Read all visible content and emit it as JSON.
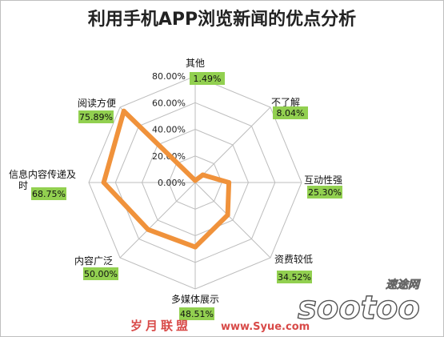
{
  "chart_data": {
    "type": "radar",
    "title": "利用手机APP浏览新闻的优点分析",
    "categories": [
      "其他",
      "不了解",
      "互动性强",
      "资费较低",
      "多媒体展示",
      "内容广泛",
      "信息内容传递及时",
      "阅读方便"
    ],
    "values": [
      1.49,
      8.04,
      25.3,
      34.52,
      48.51,
      50.0,
      68.75,
      75.89
    ],
    "value_labels": [
      "1.49%",
      "8.04%",
      "25.30%",
      "34.52%",
      "48.51%",
      "50.00%",
      "68.75%",
      "75.89%"
    ],
    "rlim": [
      0,
      80
    ],
    "ticks": [
      "0.00%",
      "20.00%",
      "40.00%",
      "60.00%",
      "80.00%"
    ],
    "tick_values": [
      0,
      20,
      40,
      60,
      80
    ],
    "grid": true,
    "legend": "none",
    "series_color": "#f0923b",
    "label_bg_color": "#92d050"
  },
  "watermark": {
    "site_cn": "岁月联盟",
    "site_url": "www.Syue.com",
    "logo_text": "sootoo",
    "logo_cn": "速途网"
  }
}
